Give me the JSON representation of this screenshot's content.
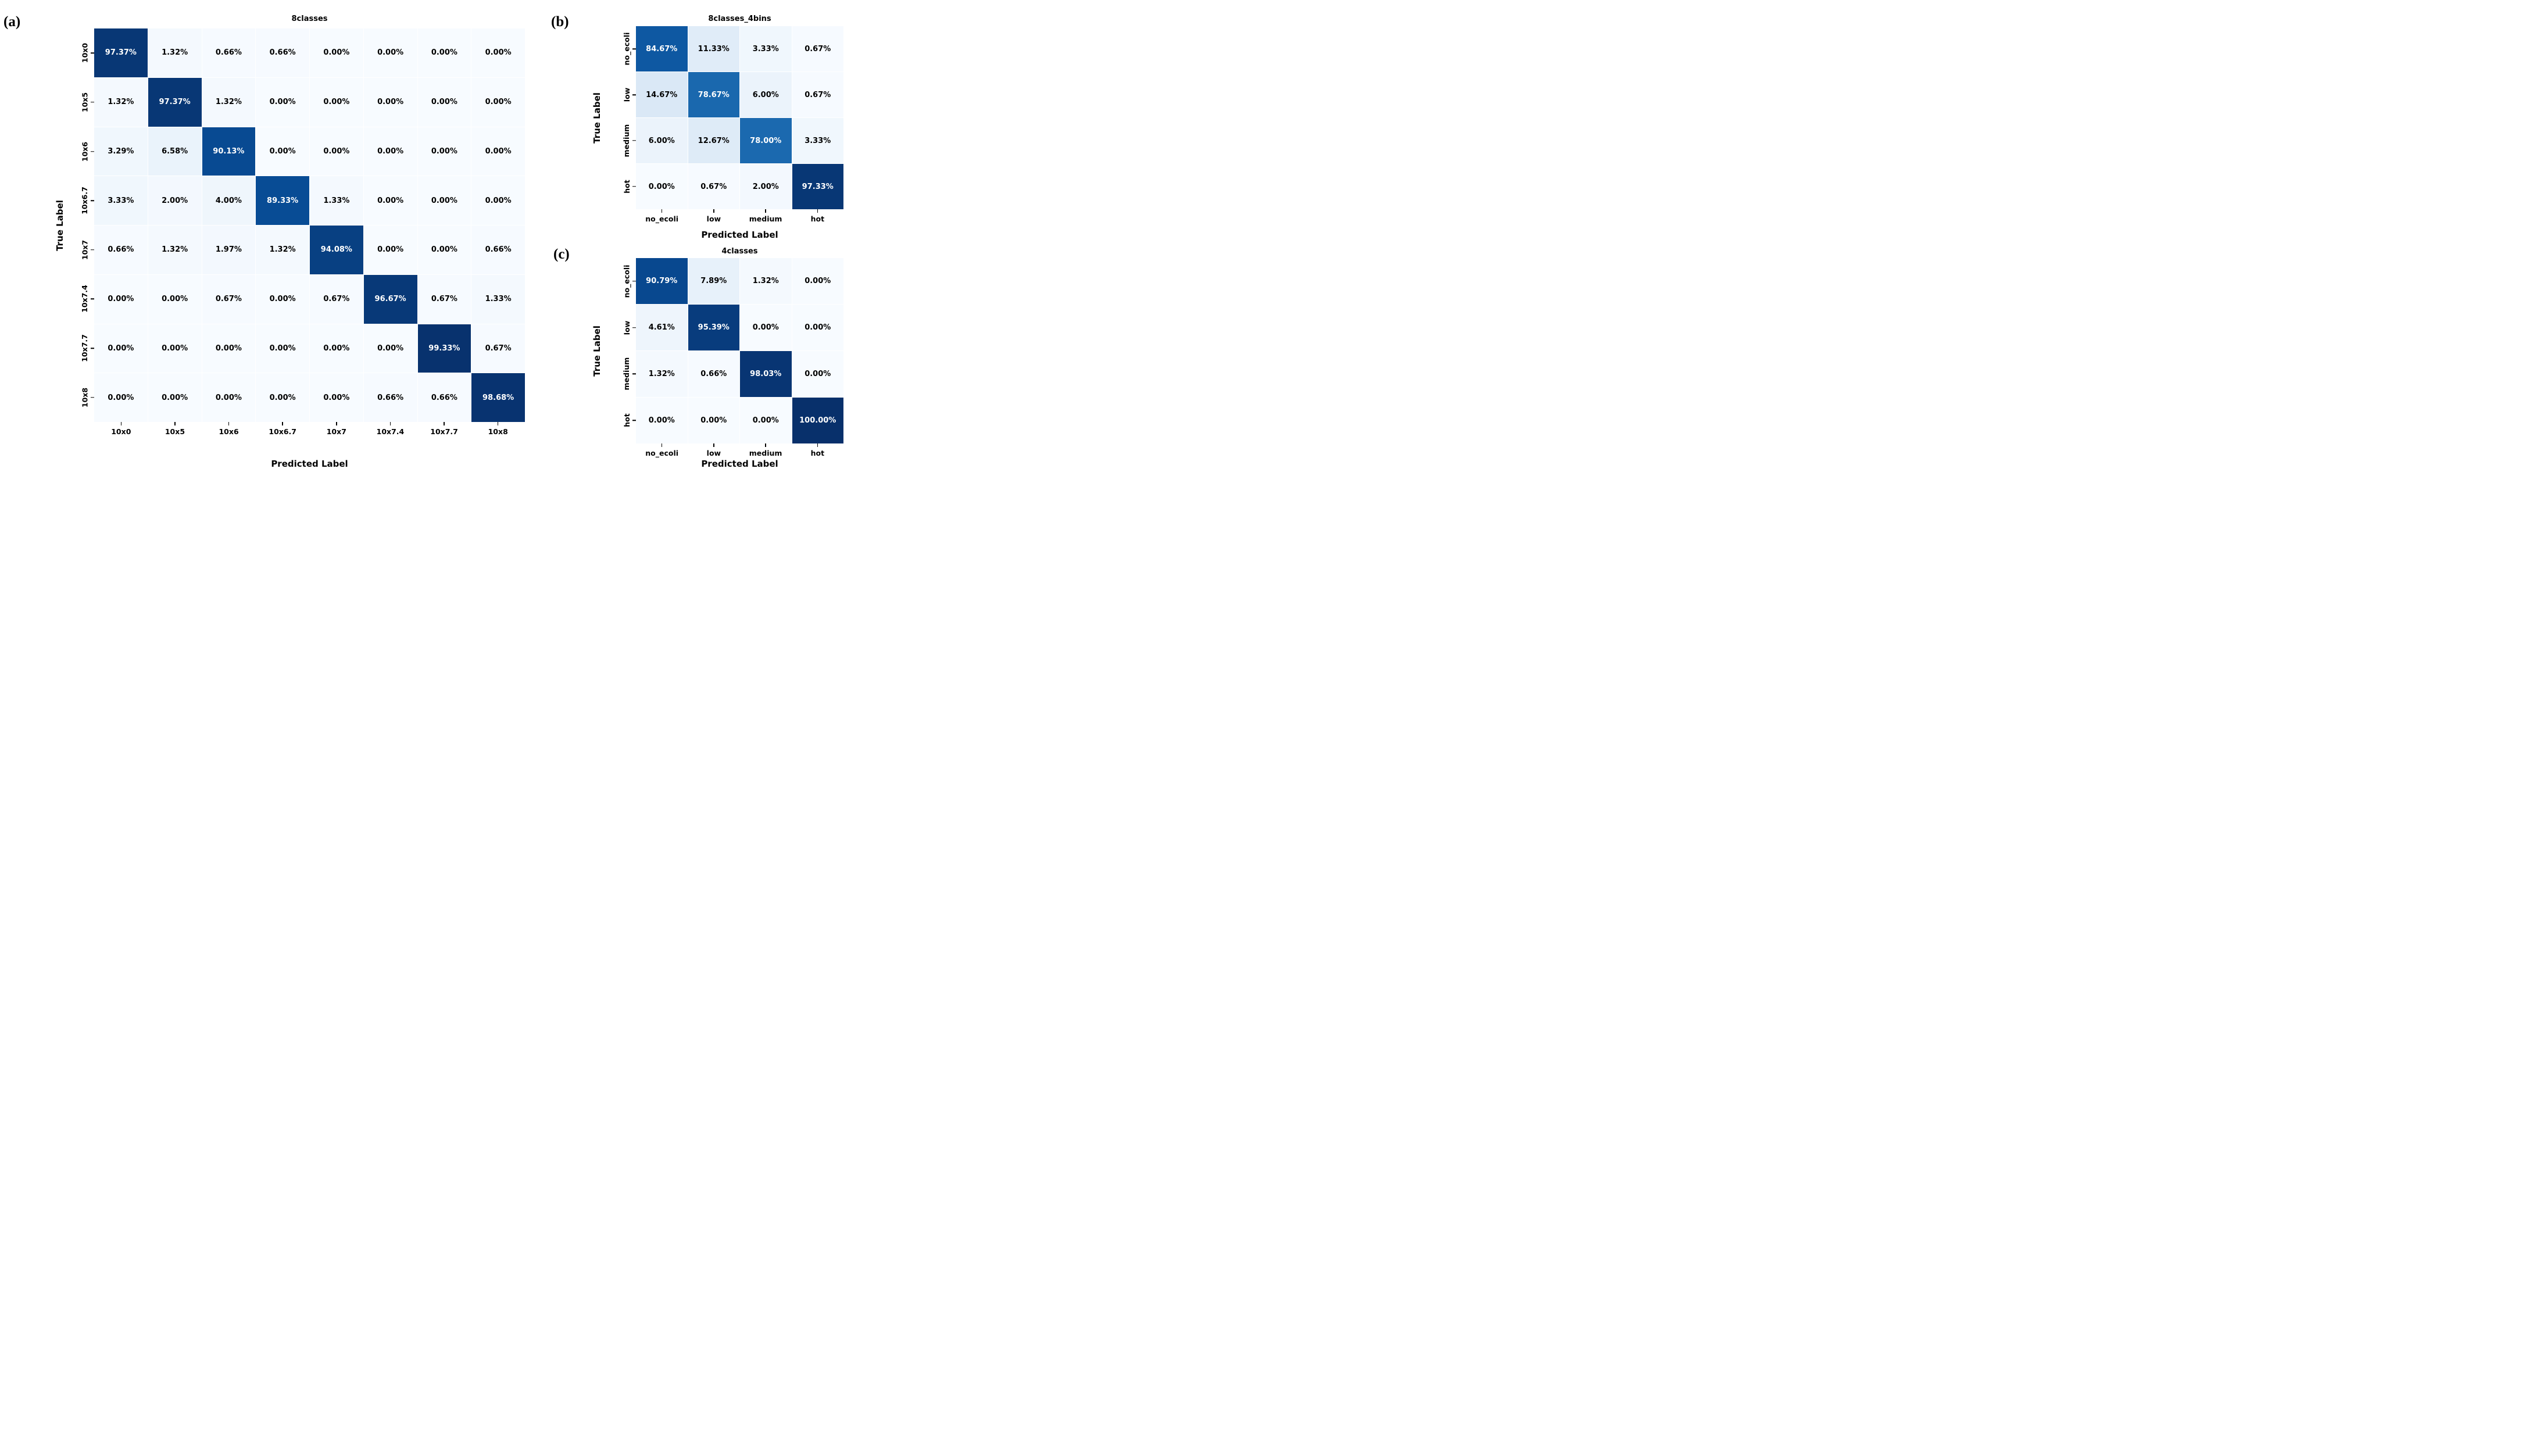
{
  "page": {
    "background": "#ffffff"
  },
  "style": {
    "colormap_name": "Blues",
    "colormap_stops": [
      "#f7fbff",
      "#deebf7",
      "#c6dbef",
      "#9ecae1",
      "#6baed6",
      "#4292c6",
      "#2171b5",
      "#08519c",
      "#08306b"
    ],
    "vmin": 0,
    "vmax": 100,
    "light_text_threshold": 50,
    "cell_text_light": "#ffffff",
    "cell_text_dark": "#000000",
    "grid_gap_color": "#ffffff"
  },
  "chart_data": [
    {
      "type": "heatmap",
      "panel_label": "(a)",
      "title": "8classes",
      "xlabel": "Predicted Label",
      "ylabel": "True Label",
      "x_categories": [
        "10x0",
        "10x5",
        "10x6",
        "10x6.7",
        "10x7",
        "10x7.4",
        "10x7.7",
        "10x8"
      ],
      "y_categories": [
        "10x0",
        "10x5",
        "10x6",
        "10x6.7",
        "10x7",
        "10x7.4",
        "10x7.7",
        "10x8"
      ],
      "values_percent": [
        [
          97.37,
          1.32,
          0.66,
          0.66,
          0.0,
          0.0,
          0.0,
          0.0
        ],
        [
          1.32,
          97.37,
          1.32,
          0.0,
          0.0,
          0.0,
          0.0,
          0.0
        ],
        [
          3.29,
          6.58,
          90.13,
          0.0,
          0.0,
          0.0,
          0.0,
          0.0
        ],
        [
          3.33,
          2.0,
          4.0,
          89.33,
          1.33,
          0.0,
          0.0,
          0.0
        ],
        [
          0.66,
          1.32,
          1.97,
          1.32,
          94.08,
          0.0,
          0.0,
          0.66
        ],
        [
          0.0,
          0.0,
          0.67,
          0.0,
          0.67,
          96.67,
          0.67,
          1.33
        ],
        [
          0.0,
          0.0,
          0.0,
          0.0,
          0.0,
          0.0,
          99.33,
          0.67
        ],
        [
          0.0,
          0.0,
          0.0,
          0.0,
          0.0,
          0.66,
          0.66,
          98.68
        ]
      ],
      "value_decimals": 2,
      "value_suffix": "%"
    },
    {
      "type": "heatmap",
      "panel_label": "(b)",
      "title": "8classes_4bins",
      "xlabel": "Predicted Label",
      "ylabel": "True Label",
      "x_categories": [
        "no_ecoli",
        "low",
        "medium",
        "hot"
      ],
      "y_categories": [
        "no_ecoli",
        "low",
        "medium",
        "hot"
      ],
      "values_percent": [
        [
          84.67,
          11.33,
          3.33,
          0.67
        ],
        [
          14.67,
          78.67,
          6.0,
          0.67
        ],
        [
          6.0,
          12.67,
          78.0,
          3.33
        ],
        [
          0.0,
          0.67,
          2.0,
          97.33
        ]
      ],
      "value_decimals": 2,
      "value_suffix": "%"
    },
    {
      "type": "heatmap",
      "panel_label": "(c)",
      "title": "4classes",
      "xlabel": "Predicted Label",
      "ylabel": "True Label",
      "x_categories": [
        "no_ecoli",
        "low",
        "medium",
        "hot"
      ],
      "y_categories": [
        "no_ecoli",
        "low",
        "medium",
        "hot"
      ],
      "values_percent": [
        [
          90.79,
          7.89,
          1.32,
          0.0
        ],
        [
          4.61,
          95.39,
          0.0,
          0.0
        ],
        [
          1.32,
          0.66,
          98.03,
          0.0
        ],
        [
          0.0,
          0.0,
          0.0,
          100.0
        ]
      ],
      "value_decimals": 2,
      "value_suffix": "%"
    }
  ]
}
